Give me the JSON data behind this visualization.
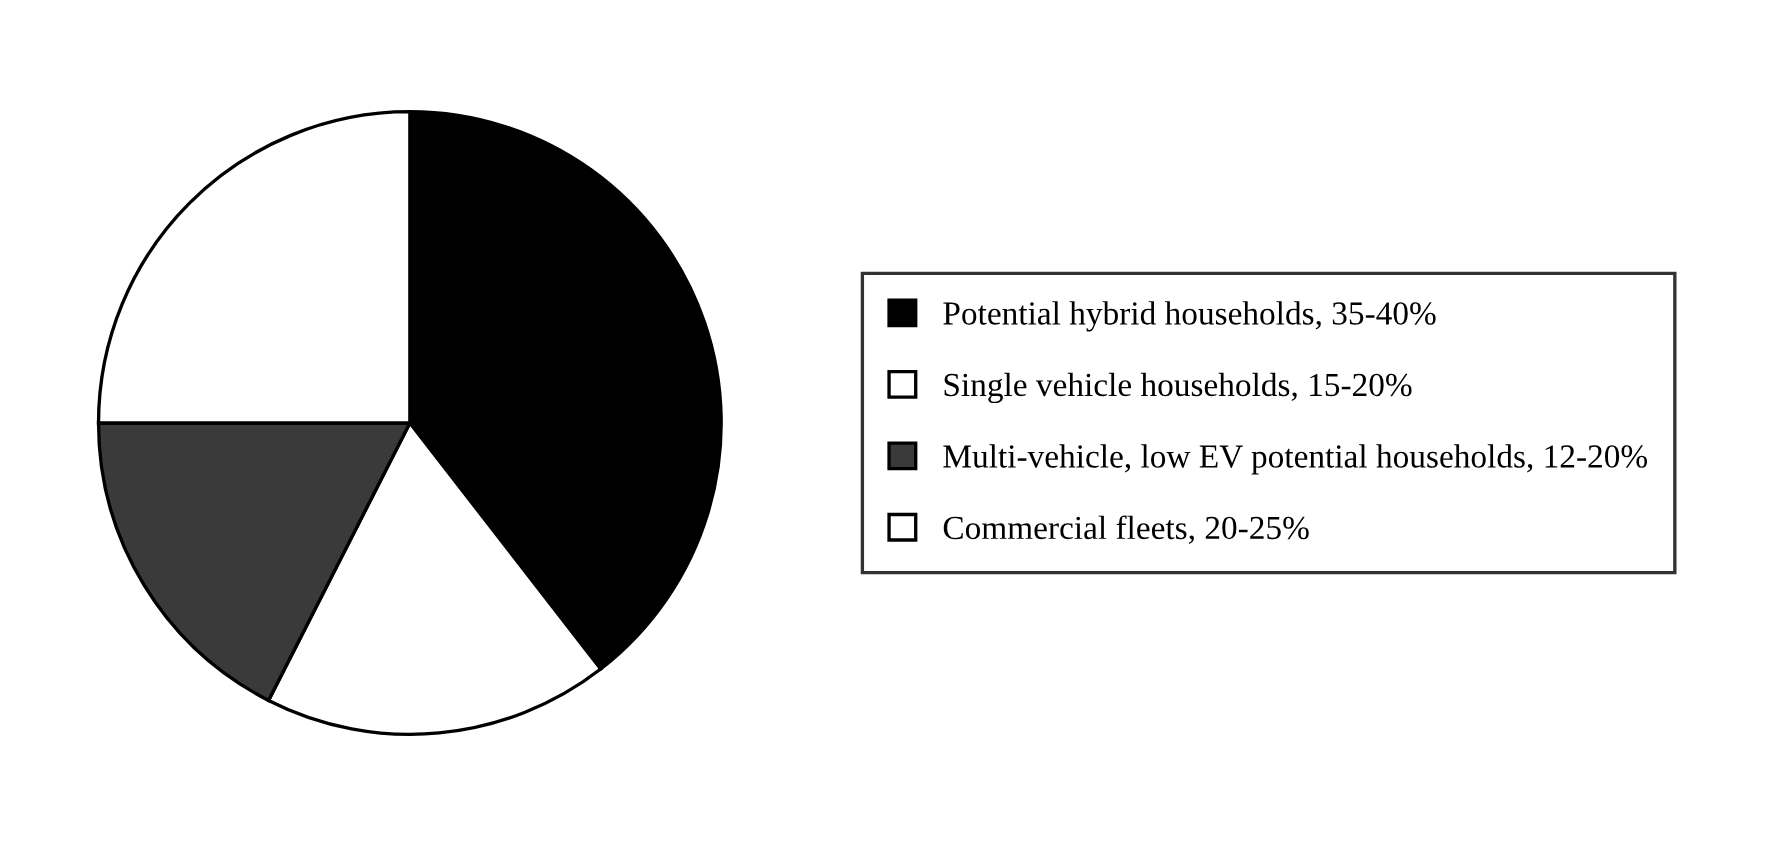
{
  "chart_data": {
    "type": "pie",
    "categories": [
      "Potential hybrid households, 35-40%",
      "Single vehicle households, 15-20%",
      "Multi-vehicle, low EV potential households, 12-20%",
      "Commercial fleets, 20-25%"
    ],
    "values": [
      39.5,
      18,
      17.5,
      25
    ],
    "colors": [
      "#000000",
      "#ffffff",
      "#3a3a3a",
      "#ffffff"
    ],
    "legend": "right"
  }
}
